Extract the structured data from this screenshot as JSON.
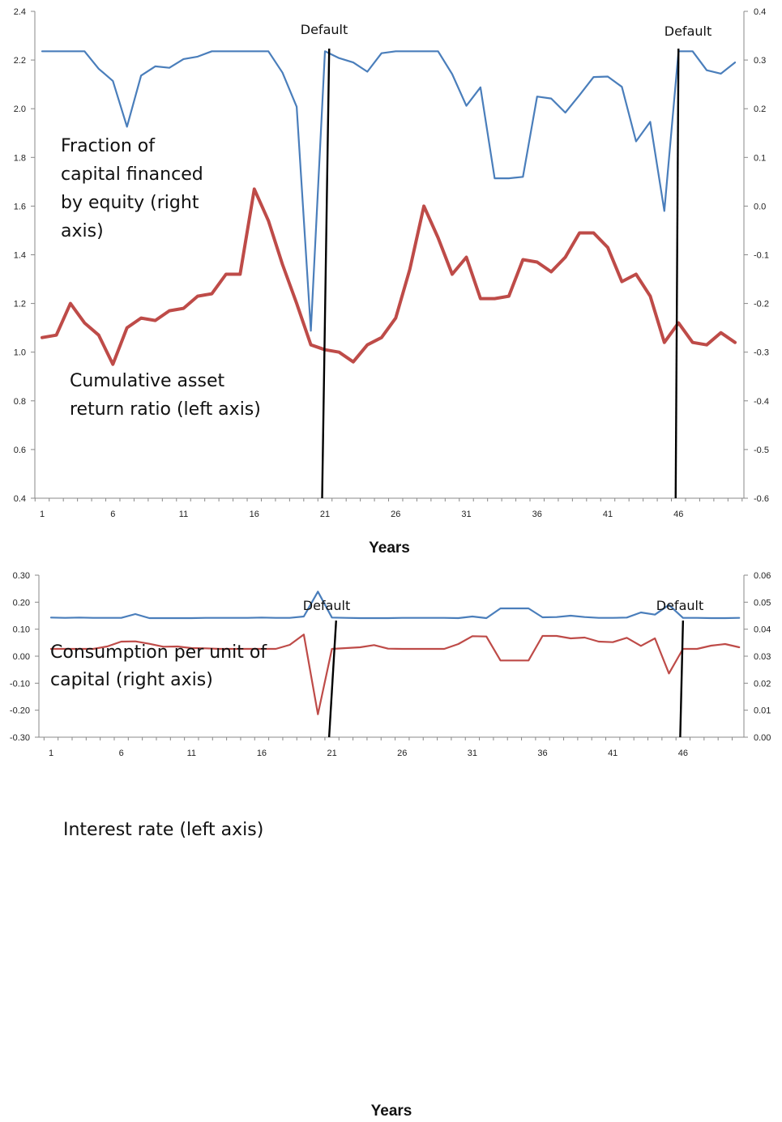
{
  "chart_data": [
    {
      "type": "line",
      "xlabel": "Years",
      "x_start": 1,
      "x_ticks": [
        1,
        6,
        11,
        16,
        21,
        26,
        31,
        36,
        41,
        46
      ],
      "y_left_lim": [
        0.4,
        2.4
      ],
      "y_left_ticks": [
        "0.4",
        "0.6",
        "0.8",
        "1.0",
        "1.2",
        "1.4",
        "1.6",
        "1.8",
        "2.0",
        "2.2",
        "2.4"
      ],
      "y_right_lim": [
        -0.6,
        0.4
      ],
      "y_right_ticks": [
        "-0.6",
        "-0.5",
        "-0.4",
        "-0.3",
        "-0.2",
        "-0.1",
        "0.0",
        "0.1",
        "0.2",
        "0.3",
        "0.4"
      ],
      "series": [
        {
          "name": "Fraction of capital financed by equity (right axis)",
          "axis": "right",
          "color": "#4a7ebb",
          "values": [
            0.318,
            0.318,
            0.318,
            0.318,
            0.282,
            0.257,
            0.163,
            0.268,
            0.287,
            0.284,
            0.302,
            0.307,
            0.318,
            0.318,
            0.318,
            0.318,
            0.318,
            0.274,
            0.204,
            -0.256,
            0.318,
            0.304,
            0.295,
            0.276,
            0.314,
            0.318,
            0.318,
            0.318,
            0.318,
            0.271,
            0.206,
            0.244,
            0.057,
            0.057,
            0.06,
            0.225,
            0.221,
            0.192,
            0.228,
            0.265,
            0.266,
            0.245,
            0.133,
            0.173,
            -0.01,
            0.318,
            0.318,
            0.279,
            0.272,
            0.295
          ]
        },
        {
          "name": "Cumulative asset return ratio (left axis)",
          "axis": "left",
          "color": "#be4b48",
          "values": [
            1.06,
            1.07,
            1.2,
            1.12,
            1.07,
            0.95,
            1.1,
            1.14,
            1.13,
            1.17,
            1.18,
            1.23,
            1.24,
            1.32,
            1.32,
            1.67,
            1.54,
            1.36,
            1.2,
            1.03,
            1.01,
            1.0,
            0.96,
            1.03,
            1.06,
            1.14,
            1.34,
            1.6,
            1.47,
            1.32,
            1.39,
            1.22,
            1.22,
            1.23,
            1.38,
            1.37,
            1.33,
            1.39,
            1.49,
            1.49,
            1.43,
            1.29,
            1.32,
            1.23,
            1.04,
            1.12,
            1.04,
            1.03,
            1.08,
            1.04
          ]
        }
      ],
      "defaults": [
        {
          "label": "Default",
          "x_top": 21.3,
          "x_bottom": 20.8
        },
        {
          "label": "Default",
          "x_top": 46.0,
          "x_bottom": 45.8
        }
      ],
      "annotations": [
        {
          "lines": [
            "Fraction of",
            "capital financed",
            "by equity (right",
            "axis)"
          ]
        },
        {
          "lines": [
            "Cumulative asset",
            "return ratio (left axis)"
          ]
        }
      ]
    },
    {
      "type": "line",
      "xlabel": "Years",
      "x_start": 1,
      "x_ticks": [
        1,
        6,
        11,
        16,
        21,
        26,
        31,
        36,
        41,
        46
      ],
      "y_left_lim": [
        -0.3,
        0.3
      ],
      "y_left_ticks": [
        "-0.30",
        "-0.20",
        "-0.10",
        "0.00",
        "0.10",
        "0.20",
        "0.30"
      ],
      "y_right_lim": [
        0.0,
        0.06
      ],
      "y_right_ticks": [
        "0.00",
        "0.01",
        "0.02",
        "0.03",
        "0.04",
        "0.05",
        "0.06"
      ],
      "series": [
        {
          "name": "Consumption per unit of capital (right axis)",
          "axis": "right",
          "color": "#4a7ebb",
          "values": [
            0.0443,
            0.0442,
            0.0443,
            0.0442,
            0.0442,
            0.0442,
            0.0456,
            0.0441,
            0.0441,
            0.0441,
            0.0441,
            0.0442,
            0.0442,
            0.0442,
            0.0442,
            0.0443,
            0.0442,
            0.0442,
            0.0447,
            0.0539,
            0.0443,
            0.0442,
            0.0441,
            0.0441,
            0.0441,
            0.0442,
            0.0442,
            0.0442,
            0.0442,
            0.0441,
            0.0447,
            0.0441,
            0.0477,
            0.0477,
            0.0477,
            0.0444,
            0.0445,
            0.045,
            0.0445,
            0.0442,
            0.0442,
            0.0443,
            0.0462,
            0.0454,
            0.049,
            0.0442,
            0.0442,
            0.0441,
            0.0441,
            0.0442
          ]
        },
        {
          "name": "Interest rate (left axis)",
          "axis": "left",
          "color": "#be4b48",
          "values": [
            0.027,
            0.027,
            0.027,
            0.027,
            0.036,
            0.054,
            0.055,
            0.046,
            0.035,
            0.036,
            0.03,
            0.029,
            0.027,
            0.027,
            0.027,
            0.027,
            0.027,
            0.042,
            0.08,
            -0.215,
            0.027,
            0.03,
            0.033,
            0.041,
            0.028,
            0.027,
            0.027,
            0.027,
            0.027,
            0.045,
            0.074,
            0.073,
            -0.016,
            -0.016,
            -0.016,
            0.075,
            0.075,
            0.066,
            0.069,
            0.054,
            0.052,
            0.068,
            0.038,
            0.066,
            -0.064,
            0.027,
            0.027,
            0.039,
            0.045,
            0.033
          ]
        }
      ],
      "defaults": [
        {
          "label": "Default",
          "x_top": 21.3,
          "x_bottom": 20.8
        },
        {
          "label": "Default",
          "x_top": 46.0,
          "x_bottom": 45.8
        }
      ],
      "annotations": [
        {
          "lines": [
            "Consumption per unit of",
            "capital (right axis)"
          ]
        },
        {
          "lines": [
            "Interest rate (left axis)"
          ]
        }
      ]
    }
  ]
}
